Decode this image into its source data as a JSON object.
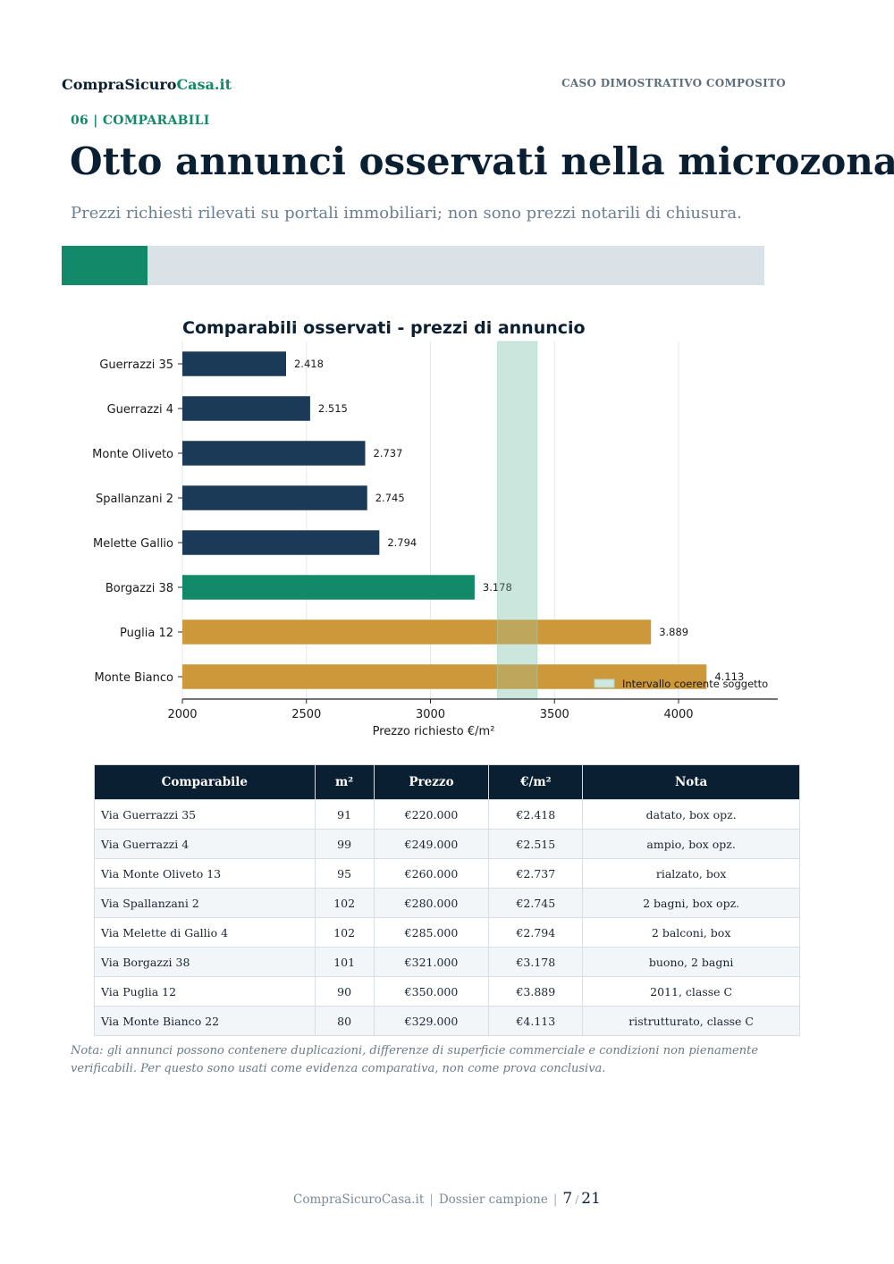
{
  "header": {
    "brand_main": "CompraSicuro",
    "brand_accent": "Casa.it",
    "case_label": "CASO DIMOSTRATIVO COMPOSITO"
  },
  "section": {
    "label": "06 | COMPARABILI",
    "title": "Otto annunci osservati nella microzona",
    "subtitle": "Prezzi richiesti rilevati su portali immobiliari; non sono prezzi notarili di chiusura."
  },
  "progress": {
    "fraction": 0.122
  },
  "colors": {
    "navy": "#1a3a58",
    "green": "#128a6a",
    "gold": "#c9922e",
    "band": "#cfe8df"
  },
  "chart_data": {
    "type": "bar",
    "orientation": "horizontal",
    "title": "Comparabili osservati - prezzi di annuncio",
    "xlabel": "Prezzo richiesto €/m²",
    "ylabel": "",
    "xlim": [
      2000,
      4400
    ],
    "xticks": [
      2000,
      2500,
      3000,
      3500,
      4000
    ],
    "grid": "vertical",
    "categories": [
      "Guerrazzi 35",
      "Guerrazzi 4",
      "Monte Oliveto",
      "Spallanzani 2",
      "Melette Gallio",
      "Borgazzi 38",
      "Puglia 12",
      "Monte Bianco"
    ],
    "values": [
      2418,
      2515,
      2737,
      2745,
      2794,
      3178,
      3889,
      4113
    ],
    "value_labels": [
      "2.418",
      "2.515",
      "2.737",
      "2.745",
      "2.794",
      "3.178",
      "3.889",
      "4.113"
    ],
    "bar_colors": [
      "#1a3a58",
      "#1a3a58",
      "#1a3a58",
      "#1a3a58",
      "#1a3a58",
      "#128a6a",
      "#c9922e",
      "#c9922e"
    ],
    "band": {
      "from": 3270,
      "to": 3430,
      "label": "Intervallo coerente soggetto"
    },
    "legend_position": "bottom-right"
  },
  "table": {
    "headers": [
      "Comparabile",
      "m²",
      "Prezzo",
      "€/m²",
      "Nota"
    ],
    "rows": [
      [
        "Via Guerrazzi 35",
        "91",
        "€220.000",
        "€2.418",
        "datato, box opz."
      ],
      [
        "Via Guerrazzi 4",
        "99",
        "€249.000",
        "€2.515",
        "ampio, box opz."
      ],
      [
        "Via Monte Oliveto 13",
        "95",
        "€260.000",
        "€2.737",
        "rialzato, box"
      ],
      [
        "Via Spallanzani 2",
        "102",
        "€280.000",
        "€2.745",
        "2 bagni, box opz."
      ],
      [
        "Via Melette di Gallio 4",
        "102",
        "€285.000",
        "€2.794",
        "2 balconi, box"
      ],
      [
        "Via Borgazzi 38",
        "101",
        "€321.000",
        "€3.178",
        "buono, 2 bagni"
      ],
      [
        "Via Puglia 12",
        "90",
        "€350.000",
        "€3.889",
        "2011, classe C"
      ],
      [
        "Via Monte Bianco 22",
        "80",
        "€329.000",
        "€4.113",
        "ristrutturato, classe C"
      ]
    ]
  },
  "note": "Nota: gli annunci possono contenere duplicazioni, differenze di superficie commerciale e condizioni non pienamente verificabili. Per questo sono usati come evidenza comparativa, non come prova conclusiva.",
  "footer": {
    "site": "CompraSicuroCasa.it",
    "doc": "Dossier campione",
    "page": "7",
    "total": "21"
  }
}
